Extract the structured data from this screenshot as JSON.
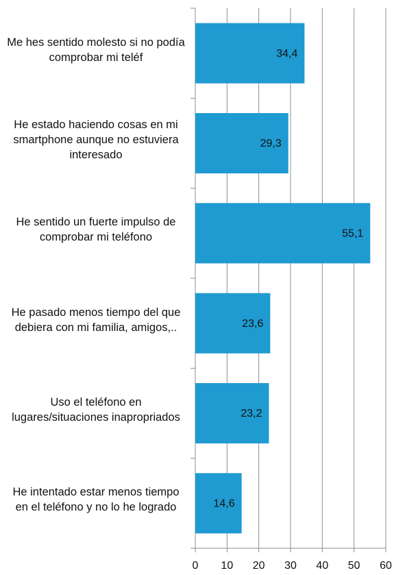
{
  "chart_data": {
    "type": "bar",
    "orientation": "horizontal",
    "categories": [
      "Me hes sentido molesto si no podía comprobar mi teléf",
      "He estado haciendo cosas en mi smartphone aunque no estuviera interesado",
      "He sentido un fuerte impulso de comprobar mi teléfono",
      "He pasado menos tiempo del que debiera con mi familia, amigos,..",
      "Uso el teléfono en lugares/situaciones inapropriados",
      "He intentado estar menos tiempo en el teléfono y no lo he logrado"
    ],
    "values": [
      34.4,
      29.3,
      55.1,
      23.6,
      23.2,
      14.6
    ],
    "value_labels": [
      "34,4",
      "29,3",
      "55,1",
      "23,6",
      "23,2",
      "14,6"
    ],
    "color": "#1f9bd1",
    "xlim": [
      0,
      60
    ],
    "xticks": [
      0,
      10,
      20,
      30,
      40,
      50,
      60
    ],
    "grid": true
  }
}
